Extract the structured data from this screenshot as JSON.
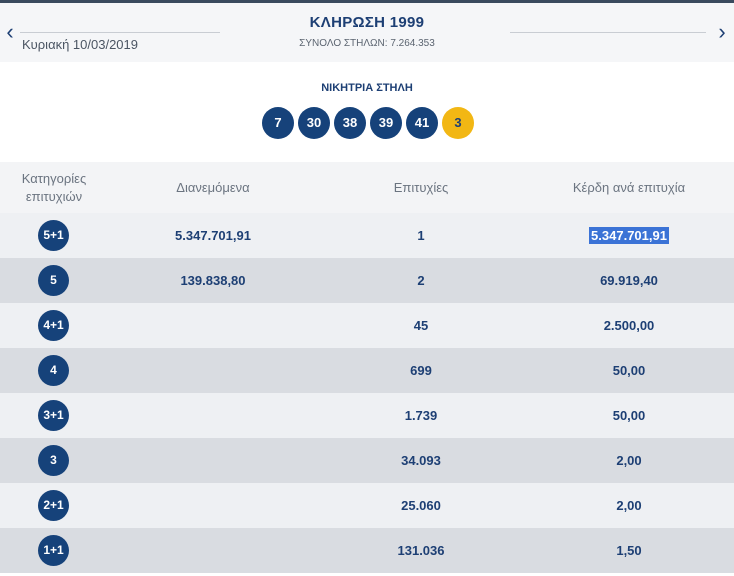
{
  "header": {
    "prev_icon": "‹",
    "next_icon": "›",
    "date": "Κυριακή 10/03/2019",
    "title": "ΚΛΗΡΩΣΗ 1999",
    "subtitle": "ΣΥΝΟΛΟ ΣΤΗΛΩΝ: 7.264.353"
  },
  "winning": {
    "label": "ΝΙΚΗΤΡΙΑ ΣΤΗΛΗ",
    "numbers": [
      "7",
      "30",
      "38",
      "39",
      "41"
    ],
    "joker": "3"
  },
  "table": {
    "headers": {
      "category": "Κατηγορίες επιτυχιών",
      "distributed": "Διανεμόμενα",
      "winners": "Επιτυχίες",
      "prize": "Κέρδη ανά επιτυχία"
    },
    "rows": [
      {
        "category": "5+1",
        "distributed": "5.347.701,91",
        "winners": "1",
        "prize": "5.347.701,91"
      },
      {
        "category": "5",
        "distributed": "139.838,80",
        "winners": "2",
        "prize": "69.919,40"
      },
      {
        "category": "4+1",
        "distributed": "",
        "winners": "45",
        "prize": "2.500,00"
      },
      {
        "category": "4",
        "distributed": "",
        "winners": "699",
        "prize": "50,00"
      },
      {
        "category": "3+1",
        "distributed": "",
        "winners": "1.739",
        "prize": "50,00"
      },
      {
        "category": "3",
        "distributed": "",
        "winners": "34.093",
        "prize": "2,00"
      },
      {
        "category": "2+1",
        "distributed": "",
        "winners": "25.060",
        "prize": "2,00"
      },
      {
        "category": "1+1",
        "distributed": "",
        "winners": "131.036",
        "prize": "1,50"
      }
    ]
  },
  "colors": {
    "brand_blue": "#16427a",
    "joker_yellow": "#f2b714",
    "selection": "#3b73d6"
  }
}
